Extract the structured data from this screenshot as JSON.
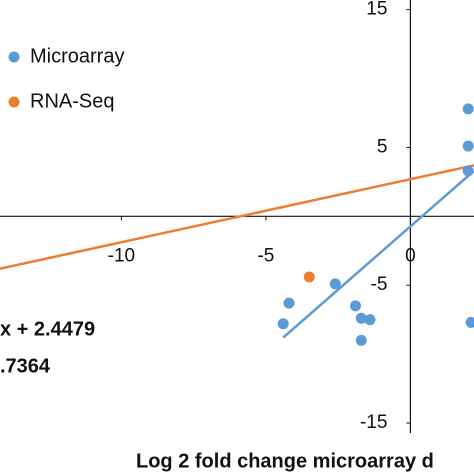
{
  "chart_data": {
    "type": "scatter",
    "x_label": "Log 2 fold change microarray d",
    "xlim": [
      -14.2,
      2.2
    ],
    "ylim": [
      -18.7,
      15.7
    ],
    "xticks": [
      -10,
      -5,
      0
    ],
    "yticks": [
      -15,
      -5,
      5,
      15
    ],
    "series": [
      {
        "name": "Microarray",
        "color": "#5b9bd5",
        "x": [
          2.0,
          2.0,
          2.0,
          -2.6,
          -4.2,
          -4.4,
          -1.9,
          -1.7,
          -1.4,
          -1.7,
          2.1
        ],
        "y": [
          7.8,
          5.1,
          3.3,
          -4.9,
          -6.3,
          -7.8,
          -6.5,
          -7.4,
          -7.5,
          -9.0,
          -7.7
        ]
      },
      {
        "name": "RNA-Seq",
        "color": "#ed7d31",
        "x": [
          -3.5
        ],
        "y": [
          -4.4
        ]
      }
    ],
    "trendlines": [
      {
        "color": "#ed7d31",
        "x": [
          -14.2,
          2.2
        ],
        "y": [
          -3.8,
          3.7
        ]
      },
      {
        "color": "#5b9bd5",
        "x": [
          -4.4,
          2.2
        ],
        "y": [
          -8.8,
          3.3
        ]
      }
    ],
    "annotations": [
      {
        "text": "x + 2.4479",
        "color": "#ed7d31"
      },
      {
        "text": ".7364",
        "color": "#ed7d31"
      }
    ]
  }
}
